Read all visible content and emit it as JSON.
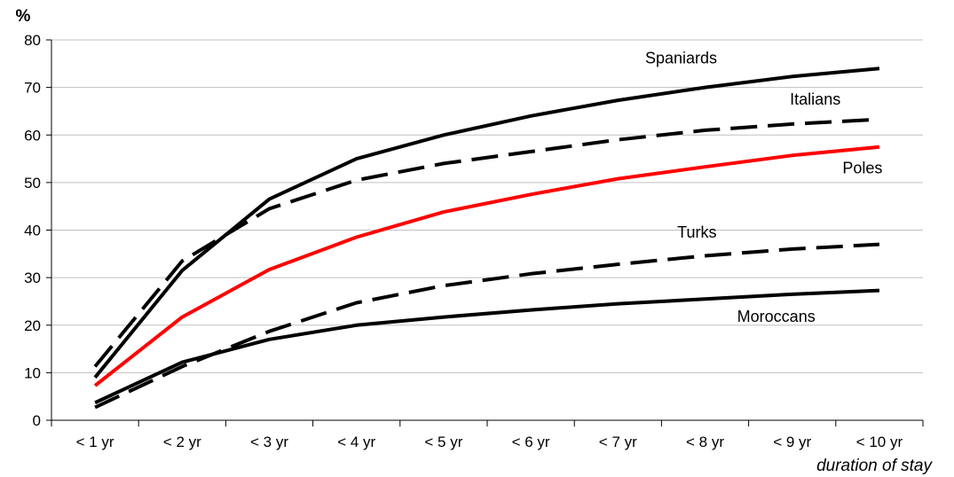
{
  "chart_data": {
    "type": "line",
    "ylabel": "%",
    "xlabel": "duration of stay",
    "ylim": [
      0,
      80
    ],
    "yticks": [
      0,
      10,
      20,
      30,
      40,
      50,
      60,
      70,
      80
    ],
    "grid": true,
    "categories": [
      "< 1 yr",
      "< 2 yr",
      "< 3 yr",
      "< 4 yr",
      "< 5 yr",
      "< 6 yr",
      "< 7 yr",
      "< 8 yr",
      "< 9 yr",
      "< 10 yr"
    ],
    "series": [
      {
        "name": "Spaniards",
        "color": "#000000",
        "dash": "solid",
        "values": [
          9,
          31.5,
          46.5,
          55,
          60,
          64,
          67.3,
          70,
          72.3,
          74
        ]
      },
      {
        "name": "Italians",
        "color": "#000000",
        "dash": "dashed",
        "values": [
          11.3,
          33.5,
          44.5,
          50.5,
          54,
          56.5,
          59,
          61,
          62.3,
          63.3
        ]
      },
      {
        "name": "Poles",
        "color": "#ff0000",
        "dash": "solid",
        "values": [
          7.3,
          21.7,
          31.7,
          38.5,
          43.8,
          47.5,
          50.8,
          53.3,
          55.7,
          57.5
        ]
      },
      {
        "name": "Turks",
        "color": "#000000",
        "dash": "dashed",
        "values": [
          2.7,
          11.3,
          18.7,
          24.7,
          28.3,
          30.8,
          32.8,
          34.6,
          36,
          37
        ]
      },
      {
        "name": "Moroccans",
        "color": "#000000",
        "dash": "solid",
        "values": [
          3.7,
          12.2,
          17,
          20,
          21.7,
          23.2,
          24.5,
          25.5,
          26.5,
          27.3
        ]
      }
    ]
  }
}
